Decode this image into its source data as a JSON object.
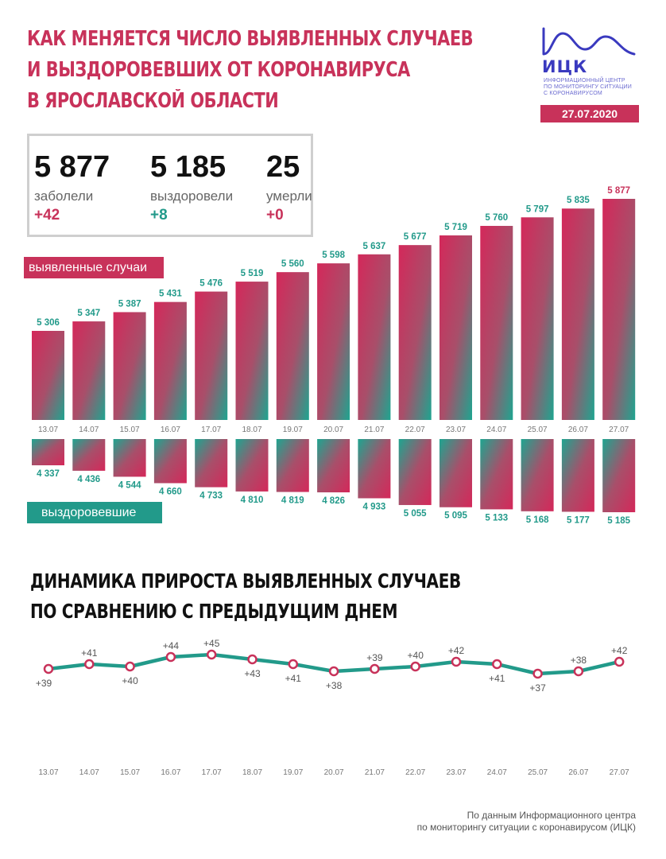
{
  "header": {
    "title_line1": "Как меняется число выявленных случаев",
    "title_line2": "и выздоровевших от коронавируса",
    "title_line3": "в Ярославской области"
  },
  "logo": {
    "name": "ИЦК",
    "subtitle_line1": "Информационный центр",
    "subtitle_line2": "по мониторингу ситуации",
    "subtitle_line3": "с коронавирусом",
    "color": "#3a3abf"
  },
  "date": "27.07.2020",
  "stats": [
    {
      "value": "5 877",
      "label": "заболели",
      "delta": "+42",
      "delta_color": "#c8325a"
    },
    {
      "value": "5 185",
      "label": "выздоровели",
      "delta": "+8",
      "delta_color": "#229a8a"
    },
    {
      "value": "25",
      "label": "умерли",
      "delta": "+0",
      "delta_color": "#c8325a"
    }
  ],
  "labels": {
    "cases_tag": "выявленные случаи",
    "recovered_tag": "выздоровевшие"
  },
  "colors": {
    "accent": "#c8325a",
    "teal": "#229a8a"
  },
  "chart_data": [
    {
      "type": "bar",
      "categories": [
        "13.07",
        "14.07",
        "15.07",
        "16.07",
        "17.07",
        "18.07",
        "19.07",
        "20.07",
        "21.07",
        "22.07",
        "23.07",
        "24.07",
        "25.07",
        "26.07",
        "27.07"
      ],
      "series": [
        {
          "name": "выявленные случаи",
          "values": [
            5306,
            5347,
            5387,
            5431,
            5476,
            5519,
            5560,
            5598,
            5637,
            5677,
            5719,
            5760,
            5797,
            5835,
            5877
          ],
          "labels": [
            "5 306",
            "5 347",
            "5 387",
            "5 431",
            "5 476",
            "5 519",
            "5 560",
            "5 598",
            "5 637",
            "5 677",
            "5 719",
            "5 760",
            "5 797",
            "5 835",
            "5 877"
          ]
        },
        {
          "name": "выздоровевшие",
          "values": [
            4337,
            4436,
            4544,
            4660,
            4733,
            4810,
            4819,
            4826,
            4933,
            5055,
            5095,
            5133,
            5168,
            5177,
            5185
          ],
          "labels": [
            "4 337",
            "4 436",
            "4 544",
            "4 660",
            "4 733",
            "4 810",
            "4 819",
            "4 826",
            "4 933",
            "5 055",
            "5 095",
            "5 133",
            "5 168",
            "5 177",
            "5 185"
          ]
        }
      ]
    },
    {
      "type": "line",
      "title": "Динамика прироста выявленных случаев по сравнению с предыдущим днем",
      "title_line1": "Динамика прироста выявленных случаев",
      "title_line2": "по сравнению с предыдущим днем",
      "categories": [
        "13.07",
        "14.07",
        "15.07",
        "16.07",
        "17.07",
        "18.07",
        "19.07",
        "20.07",
        "21.07",
        "22.07",
        "23.07",
        "24.07",
        "25.07",
        "26.07",
        "27.07"
      ],
      "values": [
        39,
        41,
        40,
        44,
        45,
        43,
        41,
        38,
        39,
        40,
        42,
        41,
        37,
        38,
        42
      ],
      "labels": [
        "+39",
        "+41",
        "+40",
        "+44",
        "+45",
        "+43",
        "+41",
        "+38",
        "+39",
        "+40",
        "+42",
        "+41",
        "+37",
        "+38",
        "+42"
      ],
      "color": "#229a8a",
      "marker_color": "#c8325a"
    }
  ],
  "footnote": {
    "line1": "По данным Информационного центра",
    "line2": "по мониторингу ситуации с коронавирусом (ИЦК)"
  }
}
